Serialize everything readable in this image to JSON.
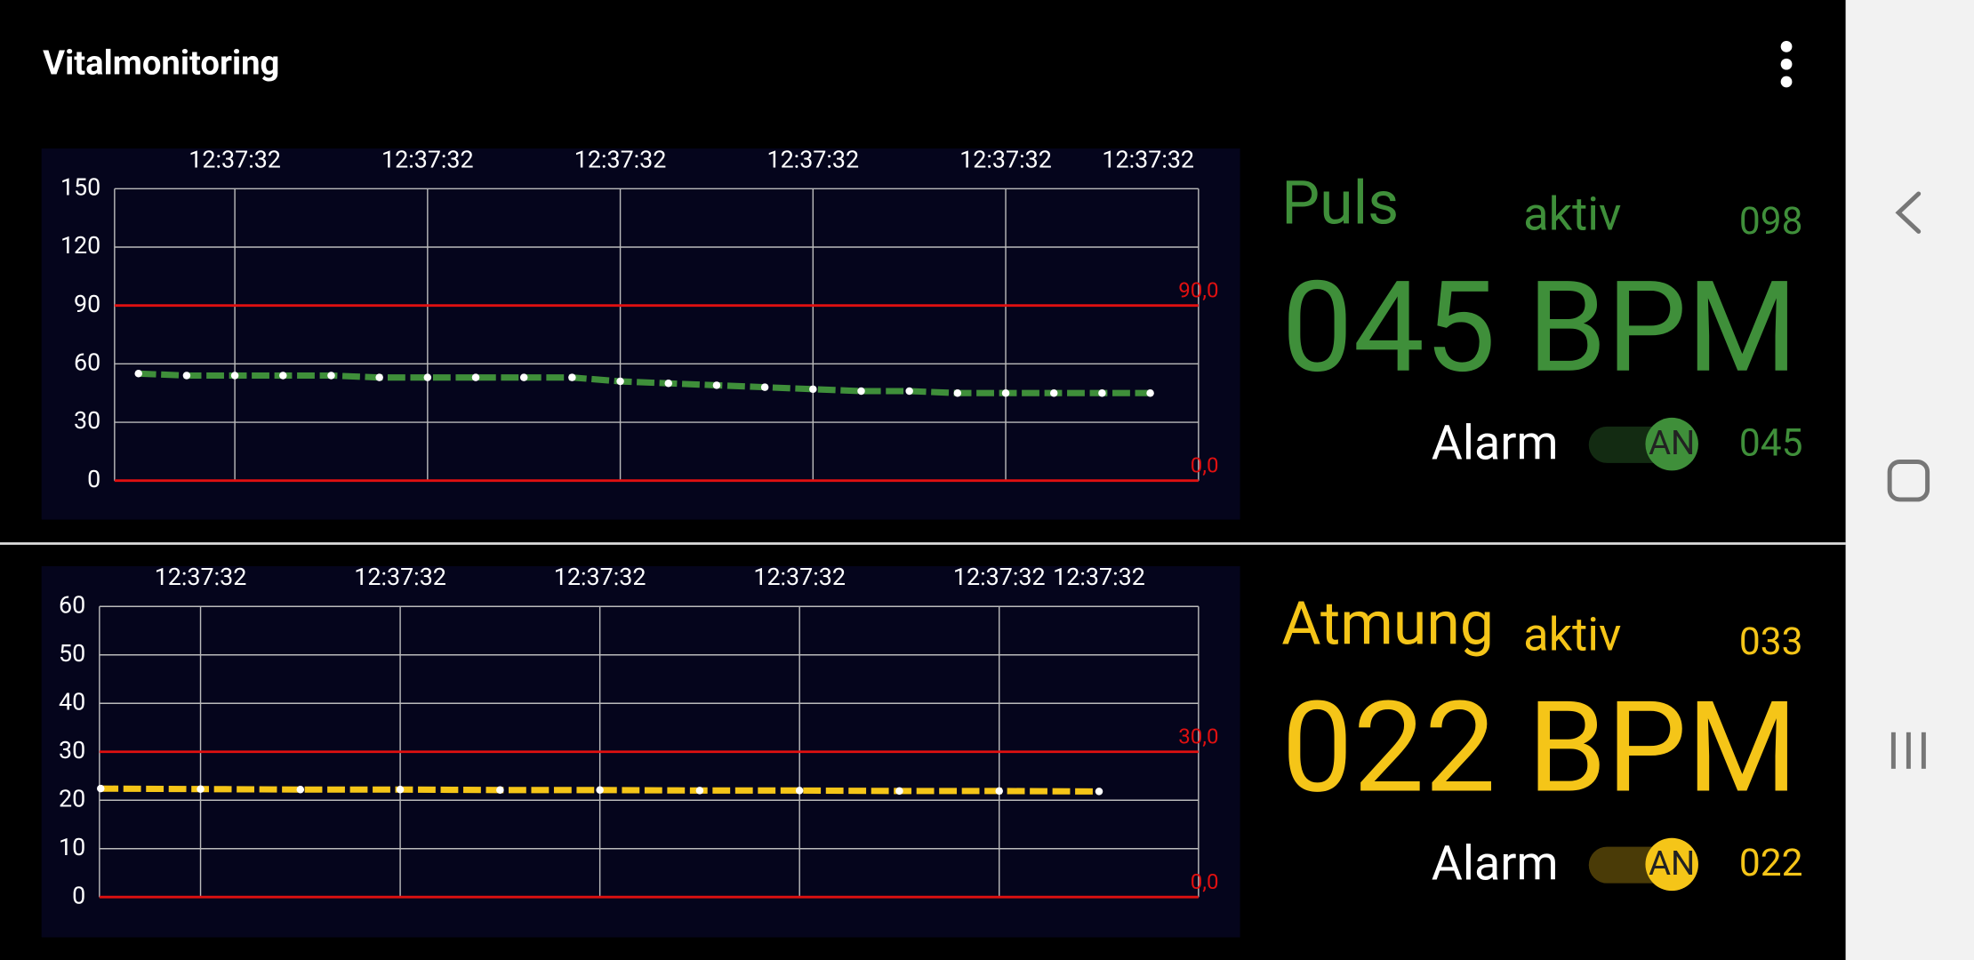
{
  "app_title": "Vitalmonitoring",
  "chart_data": [
    {
      "type": "line",
      "color": "#3f8f3a",
      "categories": [
        null,
        null,
        "12:37:32",
        null,
        null,
        null,
        "12:37:32",
        null,
        null,
        null,
        "12:37:32",
        null,
        null,
        null,
        "12:37:32",
        null,
        null,
        null,
        "12:37:32",
        null,
        null,
        "12:37:32"
      ],
      "values": [
        55,
        54,
        54,
        54,
        54,
        53,
        53,
        53,
        53,
        53,
        51,
        50,
        49,
        48,
        47,
        46,
        46,
        45,
        45,
        45,
        45,
        45
      ],
      "ylim": [
        0,
        150
      ],
      "yticks": [
        0,
        30,
        60,
        90,
        120,
        150
      ],
      "grid": true,
      "thresholds": [
        {
          "value": 90,
          "label": "90,0"
        },
        {
          "value": 0,
          "label": "0,0"
        }
      ]
    },
    {
      "type": "line",
      "color": "#f5c518",
      "categories": [
        null,
        "12:37:32",
        null,
        "12:37:32",
        null,
        "12:37:32",
        null,
        "12:37:32",
        null,
        "12:37:32",
        "12:37:32"
      ],
      "values": [
        22.4,
        22.3,
        22.2,
        22.2,
        22.1,
        22.1,
        22.0,
        22.0,
        21.9,
        21.9,
        21.8
      ],
      "ylim": [
        0,
        60
      ],
      "yticks": [
        0,
        10,
        20,
        30,
        40,
        50,
        60
      ],
      "grid": true,
      "thresholds": [
        {
          "value": 30,
          "label": "30,0"
        },
        {
          "value": 0,
          "label": "0,0"
        }
      ]
    }
  ],
  "panels": [
    {
      "label": "Puls",
      "status": "aktiv",
      "upper": "098",
      "reading": "045 BPM",
      "alarm": "Alarm",
      "toggle": "AN",
      "lower": "045"
    },
    {
      "label": "Atmung",
      "status": "aktiv",
      "upper": "033",
      "reading": "022 BPM",
      "alarm": "Alarm",
      "toggle": "AN",
      "lower": "022"
    }
  ]
}
